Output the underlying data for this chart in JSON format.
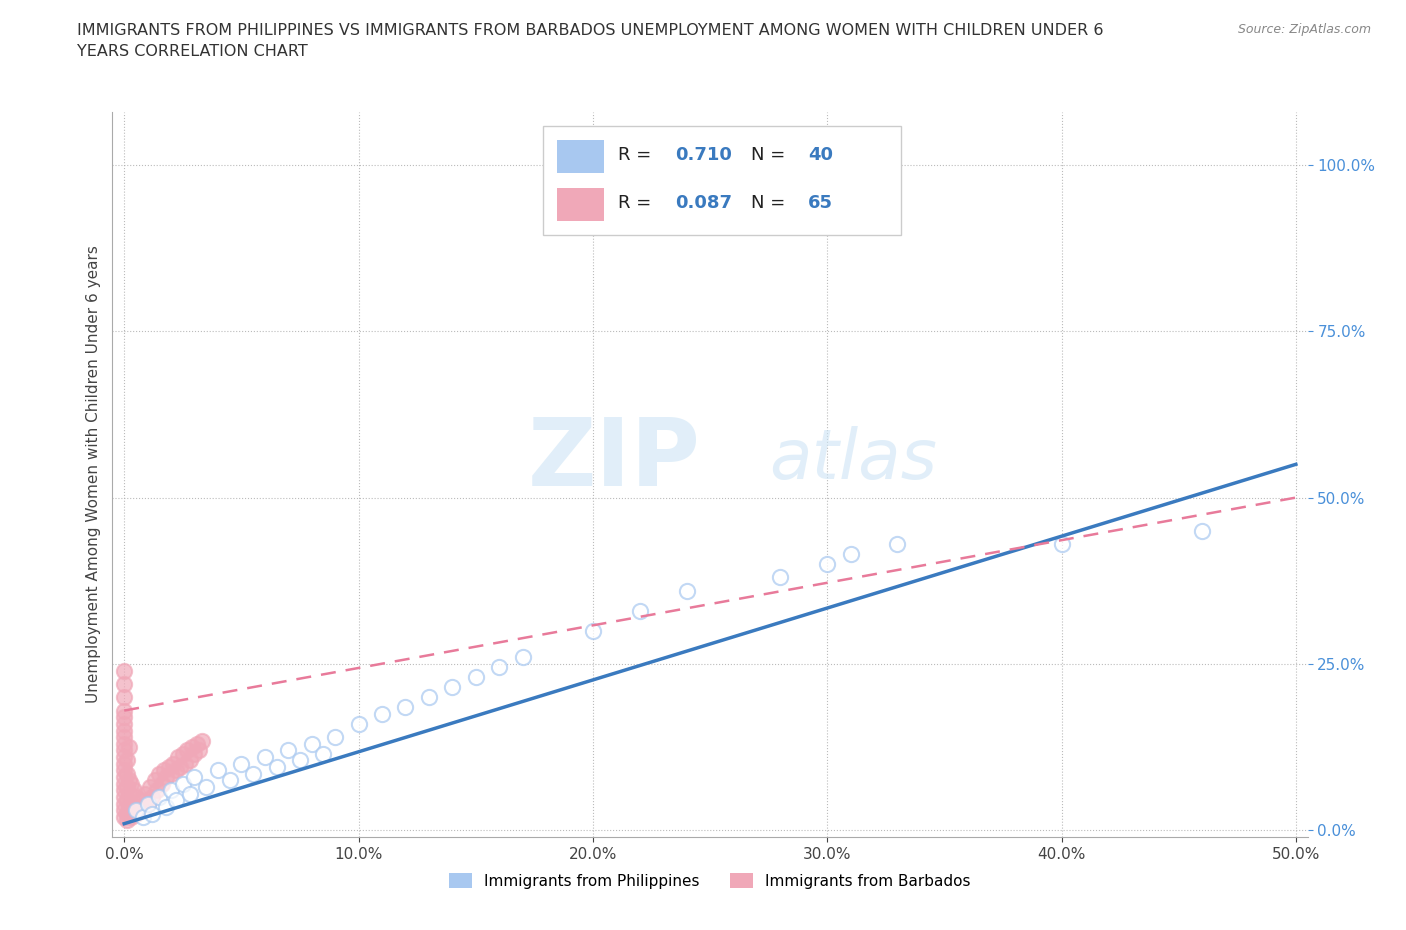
{
  "title_line1": "IMMIGRANTS FROM PHILIPPINES VS IMMIGRANTS FROM BARBADOS UNEMPLOYMENT AMONG WOMEN WITH CHILDREN UNDER 6",
  "title_line2": "YEARS CORRELATION CHART",
  "source": "Source: ZipAtlas.com",
  "ylabel": "Unemployment Among Women with Children Under 6 years",
  "xlabel_philippines": "Immigrants from Philippines",
  "xlabel_barbados": "Immigrants from Barbados",
  "R_philippines": 0.71,
  "N_philippines": 40,
  "R_barbados": 0.087,
  "N_barbados": 65,
  "xlim": [
    -0.005,
    0.505
  ],
  "ylim": [
    -0.01,
    1.08
  ],
  "xticks": [
    0.0,
    0.1,
    0.2,
    0.3,
    0.4,
    0.5
  ],
  "yticks": [
    0.0,
    0.25,
    0.5,
    0.75,
    1.0
  ],
  "color_philippines": "#a8c8f0",
  "color_barbados": "#f0a8b8",
  "line_color_philippines": "#3a7abf",
  "line_color_barbados": "#e87a9a",
  "watermark_zip": "ZIP",
  "watermark_atlas": "atlas",
  "philippines_x": [
    0.005,
    0.008,
    0.01,
    0.012,
    0.015,
    0.018,
    0.02,
    0.022,
    0.025,
    0.028,
    0.03,
    0.035,
    0.04,
    0.045,
    0.05,
    0.055,
    0.06,
    0.065,
    0.07,
    0.075,
    0.08,
    0.085,
    0.09,
    0.1,
    0.11,
    0.12,
    0.13,
    0.14,
    0.15,
    0.16,
    0.17,
    0.2,
    0.22,
    0.24,
    0.28,
    0.3,
    0.31,
    0.33,
    0.4,
    0.46
  ],
  "philippines_y": [
    0.03,
    0.02,
    0.04,
    0.025,
    0.05,
    0.035,
    0.06,
    0.045,
    0.07,
    0.055,
    0.08,
    0.065,
    0.09,
    0.075,
    0.1,
    0.085,
    0.11,
    0.095,
    0.12,
    0.105,
    0.13,
    0.115,
    0.14,
    0.16,
    0.175,
    0.185,
    0.2,
    0.215,
    0.23,
    0.245,
    0.26,
    0.3,
    0.33,
    0.36,
    0.38,
    0.4,
    0.415,
    0.43,
    0.43,
    0.45
  ],
  "barbados_x": [
    0.0,
    0.0,
    0.0,
    0.0,
    0.0,
    0.0,
    0.0,
    0.0,
    0.0,
    0.0,
    0.0,
    0.0,
    0.0,
    0.0,
    0.0,
    0.0,
    0.0,
    0.0,
    0.0,
    0.0,
    0.001,
    0.001,
    0.001,
    0.001,
    0.001,
    0.001,
    0.002,
    0.002,
    0.002,
    0.002,
    0.003,
    0.003,
    0.003,
    0.004,
    0.004,
    0.005,
    0.005,
    0.006,
    0.007,
    0.008,
    0.009,
    0.01,
    0.011,
    0.012,
    0.013,
    0.014,
    0.015,
    0.016,
    0.017,
    0.018,
    0.019,
    0.02,
    0.021,
    0.022,
    0.023,
    0.024,
    0.025,
    0.026,
    0.027,
    0.028,
    0.029,
    0.03,
    0.031,
    0.032,
    0.033
  ],
  "barbados_y": [
    0.02,
    0.03,
    0.04,
    0.06,
    0.08,
    0.1,
    0.12,
    0.14,
    0.16,
    0.18,
    0.2,
    0.22,
    0.05,
    0.07,
    0.09,
    0.11,
    0.13,
    0.15,
    0.17,
    0.24,
    0.015,
    0.025,
    0.045,
    0.065,
    0.085,
    0.105,
    0.035,
    0.055,
    0.075,
    0.125,
    0.02,
    0.04,
    0.07,
    0.03,
    0.06,
    0.025,
    0.05,
    0.035,
    0.045,
    0.03,
    0.055,
    0.04,
    0.065,
    0.05,
    0.075,
    0.06,
    0.085,
    0.07,
    0.09,
    0.08,
    0.095,
    0.085,
    0.1,
    0.09,
    0.11,
    0.095,
    0.115,
    0.1,
    0.12,
    0.105,
    0.125,
    0.115,
    0.13,
    0.12,
    0.135
  ]
}
